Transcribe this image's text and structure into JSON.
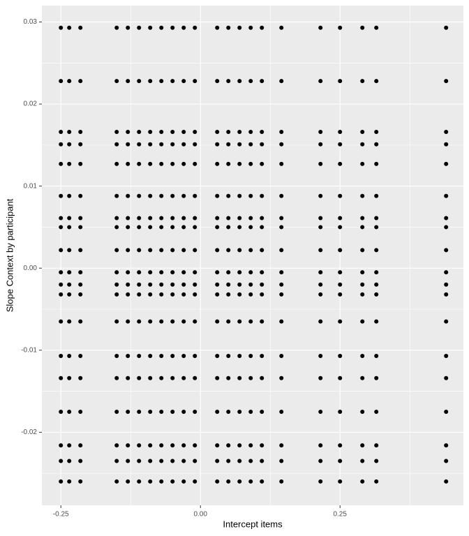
{
  "chart_data": {
    "type": "scatter",
    "xlabel": "Intercept items",
    "ylabel": "Slope Context by participant",
    "color": "#000000",
    "grid": true,
    "xlim": [
      -0.284,
      0.471
    ],
    "ylim": [
      -0.0289,
      0.032
    ],
    "xticks": [
      -0.25,
      {
        "value": 0,
        "label": "0.00"
      },
      0.25
    ],
    "yticks": [
      -0.02,
      -0.01,
      {
        "value": 0,
        "label": "0.00"
      },
      0.01,
      0.02,
      0.03
    ],
    "x": [
      -0.25,
      -0.235,
      -0.215,
      -0.15,
      -0.13,
      -0.11,
      -0.09,
      -0.07,
      -0.05,
      -0.03,
      -0.01,
      0.03,
      0.05,
      0.07,
      0.09,
      0.11,
      0.145,
      0.215,
      0.25,
      0.29,
      0.315,
      0.44,
      -0.25,
      -0.235,
      -0.215,
      -0.15,
      -0.13,
      -0.11,
      -0.09,
      -0.07,
      -0.05,
      -0.03,
      -0.01,
      0.03,
      0.05,
      0.07,
      0.09,
      0.11,
      0.145,
      0.215,
      0.25,
      0.29,
      0.315,
      0.44,
      -0.25,
      -0.235,
      -0.215,
      -0.15,
      -0.13,
      -0.11,
      -0.09,
      -0.07,
      -0.05,
      -0.03,
      -0.01,
      0.03,
      0.05,
      0.07,
      0.09,
      0.11,
      0.145,
      0.215,
      0.25,
      0.29,
      0.315,
      0.44,
      -0.25,
      -0.235,
      -0.215,
      -0.15,
      -0.13,
      -0.11,
      -0.09,
      -0.07,
      -0.05,
      -0.03,
      -0.01,
      0.03,
      0.05,
      0.07,
      0.09,
      0.11,
      0.145,
      0.215,
      0.25,
      0.29,
      0.315,
      0.44,
      -0.25,
      -0.235,
      -0.215,
      -0.15,
      -0.13,
      -0.11,
      -0.09,
      -0.07,
      -0.05,
      -0.03,
      -0.01,
      0.03,
      0.05,
      0.07,
      0.09,
      0.11,
      0.145,
      0.215,
      0.25,
      0.29,
      0.315,
      0.44,
      -0.25,
      -0.235,
      -0.215,
      -0.15,
      -0.13,
      -0.11,
      -0.09,
      -0.07,
      -0.05,
      -0.03,
      -0.01,
      0.03,
      0.05,
      0.07,
      0.09,
      0.11,
      0.145,
      0.215,
      0.25,
      0.29,
      0.315,
      0.44,
      -0.25,
      -0.235,
      -0.215,
      -0.15,
      -0.13,
      -0.11,
      -0.09,
      -0.07,
      -0.05,
      -0.03,
      -0.01,
      0.03,
      0.05,
      0.07,
      0.09,
      0.11,
      0.145,
      0.215,
      0.25,
      0.29,
      0.315,
      0.44,
      -0.25,
      -0.235,
      -0.215,
      -0.15,
      -0.13,
      -0.11,
      -0.09,
      -0.07,
      -0.05,
      -0.03,
      -0.01,
      0.03,
      0.05,
      0.07,
      0.09,
      0.11,
      0.145,
      0.215,
      0.25,
      0.29,
      0.315,
      0.44,
      -0.25,
      -0.235,
      -0.215,
      -0.15,
      -0.13,
      -0.11,
      -0.09,
      -0.07,
      -0.05,
      -0.03,
      -0.01,
      0.03,
      0.05,
      0.07,
      0.09,
      0.11,
      0.145,
      0.215,
      0.25,
      0.29,
      0.315,
      0.44,
      -0.25,
      -0.235,
      -0.215,
      -0.15,
      -0.13,
      -0.11,
      -0.09,
      -0.07,
      -0.05,
      -0.03,
      -0.01,
      0.03,
      0.05,
      0.07,
      0.09,
      0.11,
      0.145,
      0.215,
      0.25,
      0.29,
      0.315,
      0.44,
      -0.25,
      -0.235,
      -0.215,
      -0.15,
      -0.13,
      -0.11,
      -0.09,
      -0.07,
      -0.05,
      -0.03,
      -0.01,
      0.03,
      0.05,
      0.07,
      0.09,
      0.11,
      0.145,
      0.215,
      0.25,
      0.29,
      0.315,
      0.44,
      -0.25,
      -0.235,
      -0.215,
      -0.15,
      -0.13,
      -0.11,
      -0.09,
      -0.07,
      -0.05,
      -0.03,
      -0.01,
      0.03,
      0.05,
      0.07,
      0.09,
      0.11,
      0.145,
      0.215,
      0.25,
      0.29,
      0.315,
      0.44,
      -0.25,
      -0.235,
      -0.215,
      -0.15,
      -0.13,
      -0.11,
      -0.09,
      -0.07,
      -0.05,
      -0.03,
      -0.01,
      0.03,
      0.05,
      0.07,
      0.09,
      0.11,
      0.145,
      0.215,
      0.25,
      0.29,
      0.315,
      0.44,
      -0.25,
      -0.235,
      -0.215,
      -0.15,
      -0.13,
      -0.11,
      -0.09,
      -0.07,
      -0.05,
      -0.03,
      -0.01,
      0.03,
      0.05,
      0.07,
      0.09,
      0.11,
      0.145,
      0.215,
      0.25,
      0.29,
      0.315,
      0.44,
      -0.25,
      -0.235,
      -0.215,
      -0.15,
      -0.13,
      -0.11,
      -0.09,
      -0.07,
      -0.05,
      -0.03,
      -0.01,
      0.03,
      0.05,
      0.07,
      0.09,
      0.11,
      0.145,
      0.215,
      0.25,
      0.29,
      0.315,
      0.44,
      -0.25,
      -0.235,
      -0.215,
      -0.15,
      -0.13,
      -0.11,
      -0.09,
      -0.07,
      -0.05,
      -0.03,
      -0.01,
      0.03,
      0.05,
      0.07,
      0.09,
      0.11,
      0.145,
      0.215,
      0.25,
      0.29,
      0.315,
      0.44,
      -0.25,
      -0.235,
      -0.215,
      -0.15,
      -0.13,
      -0.11,
      -0.09,
      -0.07,
      -0.05,
      -0.03,
      -0.01,
      0.03,
      0.05,
      0.07,
      0.09,
      0.11,
      0.145,
      0.215,
      0.25,
      0.29,
      0.315,
      0.44,
      -0.25,
      -0.235,
      -0.215,
      -0.15,
      -0.13,
      -0.11,
      -0.09,
      -0.07,
      -0.05,
      -0.03,
      -0.01,
      0.03,
      0.05,
      0.07,
      0.09,
      0.11,
      0.145,
      0.215,
      0.25,
      0.29,
      0.315,
      0.44,
      -0.25,
      -0.235,
      -0.215,
      -0.15,
      -0.13,
      -0.11,
      -0.09,
      -0.07,
      -0.05,
      -0.03,
      -0.01,
      0.03,
      0.05,
      0.07,
      0.09,
      0.11,
      0.145,
      0.215,
      0.25,
      0.29,
      0.315,
      0.44
    ],
    "values": [
      0.0293,
      0.0293,
      0.0293,
      0.0293,
      0.0293,
      0.0293,
      0.0293,
      0.0293,
      0.0293,
      0.0293,
      0.0293,
      0.0293,
      0.0293,
      0.0293,
      0.0293,
      0.0293,
      0.0293,
      0.0293,
      0.0293,
      0.0293,
      0.0293,
      0.0293,
      0.0228,
      0.0228,
      0.0228,
      0.0228,
      0.0228,
      0.0228,
      0.0228,
      0.0228,
      0.0228,
      0.0228,
      0.0228,
      0.0228,
      0.0228,
      0.0228,
      0.0228,
      0.0228,
      0.0228,
      0.0228,
      0.0228,
      0.0228,
      0.0228,
      0.0228,
      0.0166,
      0.0166,
      0.0166,
      0.0166,
      0.0166,
      0.0166,
      0.0166,
      0.0166,
      0.0166,
      0.0166,
      0.0166,
      0.0166,
      0.0166,
      0.0166,
      0.0166,
      0.0166,
      0.0166,
      0.0166,
      0.0166,
      0.0166,
      0.0166,
      0.0166,
      0.0151,
      0.0151,
      0.0151,
      0.0151,
      0.0151,
      0.0151,
      0.0151,
      0.0151,
      0.0151,
      0.0151,
      0.0151,
      0.0151,
      0.0151,
      0.0151,
      0.0151,
      0.0151,
      0.0151,
      0.0151,
      0.0151,
      0.0151,
      0.0151,
      0.0151,
      0.0127,
      0.0127,
      0.0127,
      0.0127,
      0.0127,
      0.0127,
      0.0127,
      0.0127,
      0.0127,
      0.0127,
      0.0127,
      0.0127,
      0.0127,
      0.0127,
      0.0127,
      0.0127,
      0.0127,
      0.0127,
      0.0127,
      0.0127,
      0.0127,
      0.0127,
      0.0088,
      0.0088,
      0.0088,
      0.0088,
      0.0088,
      0.0088,
      0.0088,
      0.0088,
      0.0088,
      0.0088,
      0.0088,
      0.0088,
      0.0088,
      0.0088,
      0.0088,
      0.0088,
      0.0088,
      0.0088,
      0.0088,
      0.0088,
      0.0088,
      0.0088,
      0.0061,
      0.0061,
      0.0061,
      0.0061,
      0.0061,
      0.0061,
      0.0061,
      0.0061,
      0.0061,
      0.0061,
      0.0061,
      0.0061,
      0.0061,
      0.0061,
      0.0061,
      0.0061,
      0.0061,
      0.0061,
      0.0061,
      0.0061,
      0.0061,
      0.0061,
      0.005,
      0.005,
      0.005,
      0.005,
      0.005,
      0.005,
      0.005,
      0.005,
      0.005,
      0.005,
      0.005,
      0.005,
      0.005,
      0.005,
      0.005,
      0.005,
      0.005,
      0.005,
      0.005,
      0.005,
      0.005,
      0.005,
      0.0022,
      0.0022,
      0.0022,
      0.0022,
      0.0022,
      0.0022,
      0.0022,
      0.0022,
      0.0022,
      0.0022,
      0.0022,
      0.0022,
      0.0022,
      0.0022,
      0.0022,
      0.0022,
      0.0022,
      0.0022,
      0.0022,
      0.0022,
      0.0022,
      0.0022,
      -0.0005,
      -0.0005,
      -0.0005,
      -0.0005,
      -0.0005,
      -0.0005,
      -0.0005,
      -0.0005,
      -0.0005,
      -0.0005,
      -0.0005,
      -0.0005,
      -0.0005,
      -0.0005,
      -0.0005,
      -0.0005,
      -0.0005,
      -0.0005,
      -0.0005,
      -0.0005,
      -0.0005,
      -0.0005,
      -0.002,
      -0.002,
      -0.002,
      -0.002,
      -0.002,
      -0.002,
      -0.002,
      -0.002,
      -0.002,
      -0.002,
      -0.002,
      -0.002,
      -0.002,
      -0.002,
      -0.002,
      -0.002,
      -0.002,
      -0.002,
      -0.002,
      -0.002,
      -0.002,
      -0.002,
      -0.0032,
      -0.0032,
      -0.0032,
      -0.0032,
      -0.0032,
      -0.0032,
      -0.0032,
      -0.0032,
      -0.0032,
      -0.0032,
      -0.0032,
      -0.0032,
      -0.0032,
      -0.0032,
      -0.0032,
      -0.0032,
      -0.0032,
      -0.0032,
      -0.0032,
      -0.0032,
      -0.0032,
      -0.0032,
      -0.0065,
      -0.0065,
      -0.0065,
      -0.0065,
      -0.0065,
      -0.0065,
      -0.0065,
      -0.0065,
      -0.0065,
      -0.0065,
      -0.0065,
      -0.0065,
      -0.0065,
      -0.0065,
      -0.0065,
      -0.0065,
      -0.0065,
      -0.0065,
      -0.0065,
      -0.0065,
      -0.0065,
      -0.0065,
      -0.0107,
      -0.0107,
      -0.0107,
      -0.0107,
      -0.0107,
      -0.0107,
      -0.0107,
      -0.0107,
      -0.0107,
      -0.0107,
      -0.0107,
      -0.0107,
      -0.0107,
      -0.0107,
      -0.0107,
      -0.0107,
      -0.0107,
      -0.0107,
      -0.0107,
      -0.0107,
      -0.0107,
      -0.0107,
      -0.0134,
      -0.0134,
      -0.0134,
      -0.0134,
      -0.0134,
      -0.0134,
      -0.0134,
      -0.0134,
      -0.0134,
      -0.0134,
      -0.0134,
      -0.0134,
      -0.0134,
      -0.0134,
      -0.0134,
      -0.0134,
      -0.0134,
      -0.0134,
      -0.0134,
      -0.0134,
      -0.0134,
      -0.0134,
      -0.0175,
      -0.0175,
      -0.0175,
      -0.0175,
      -0.0175,
      -0.0175,
      -0.0175,
      -0.0175,
      -0.0175,
      -0.0175,
      -0.0175,
      -0.0175,
      -0.0175,
      -0.0175,
      -0.0175,
      -0.0175,
      -0.0175,
      -0.0175,
      -0.0175,
      -0.0175,
      -0.0175,
      -0.0175,
      -0.0216,
      -0.0216,
      -0.0216,
      -0.0216,
      -0.0216,
      -0.0216,
      -0.0216,
      -0.0216,
      -0.0216,
      -0.0216,
      -0.0216,
      -0.0216,
      -0.0216,
      -0.0216,
      -0.0216,
      -0.0216,
      -0.0216,
      -0.0216,
      -0.0216,
      -0.0216,
      -0.0216,
      -0.0216,
      -0.0235,
      -0.0235,
      -0.0235,
      -0.0235,
      -0.0235,
      -0.0235,
      -0.0235,
      -0.0235,
      -0.0235,
      -0.0235,
      -0.0235,
      -0.0235,
      -0.0235,
      -0.0235,
      -0.0235,
      -0.0235,
      -0.0235,
      -0.0235,
      -0.0235,
      -0.0235,
      -0.0235,
      -0.0235,
      -0.026,
      -0.026,
      -0.026,
      -0.026,
      -0.026,
      -0.026,
      -0.026,
      -0.026,
      -0.026,
      -0.026,
      -0.026,
      -0.026,
      -0.026,
      -0.026,
      -0.026,
      -0.026,
      -0.026,
      -0.026,
      -0.026,
      -0.026,
      -0.026,
      -0.026
    ]
  }
}
